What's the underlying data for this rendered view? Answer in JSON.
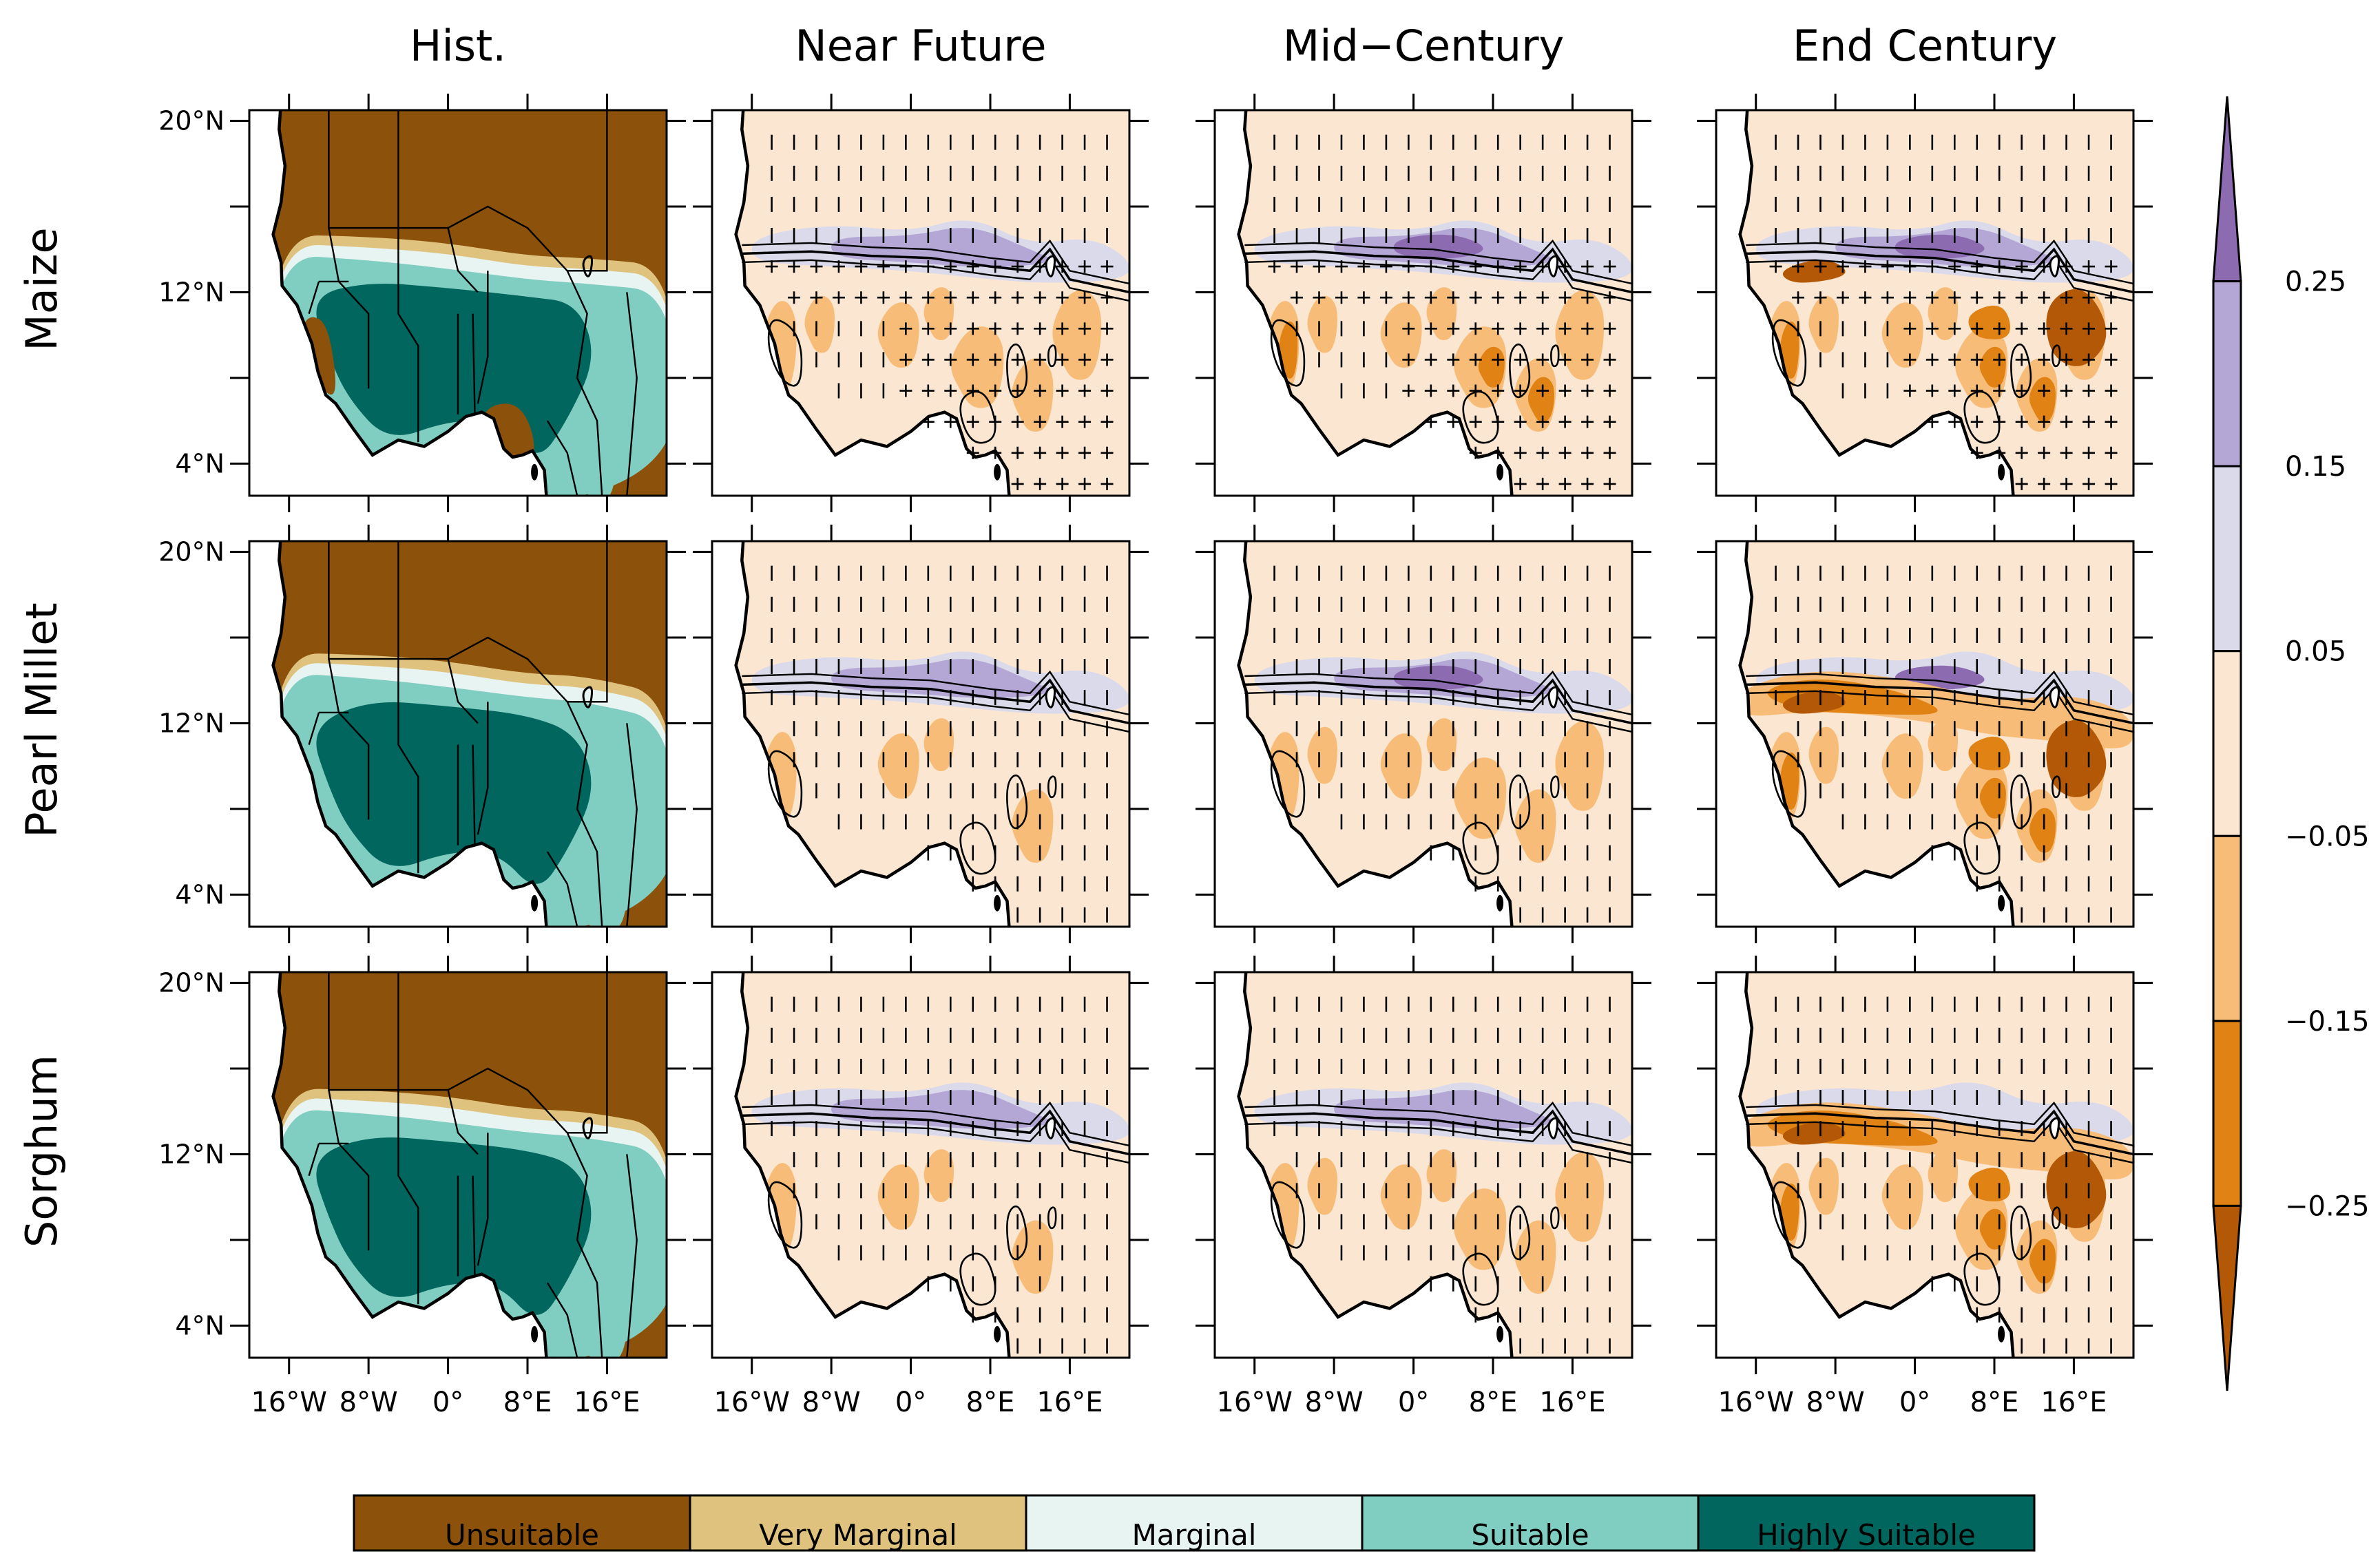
{
  "chart_data": {
    "type": "heatmap",
    "title": "",
    "column_titles": [
      "Hist.",
      "Near Future",
      "Mid−Century",
      "End Century"
    ],
    "row_labels": [
      "Maize",
      "Pearl Millet",
      "Sorghum"
    ],
    "x_ticks": [
      "16°W",
      "8°W",
      "0°",
      "8°E",
      "16°E"
    ],
    "x_tick_values": [
      -16,
      -8,
      0,
      8,
      16
    ],
    "y_ticks": [
      "20°N",
      "12°N",
      "4°N"
    ],
    "y_tick_values": [
      20,
      12,
      4
    ],
    "xlim": [
      -20,
      22
    ],
    "ylim": [
      2.5,
      20.5
    ],
    "historical_categories": {
      "labels": [
        "Unsuitable",
        "Very Marginal",
        "Marginal",
        "Suitable",
        "Highly Suitable"
      ],
      "colors": [
        "#8c510a",
        "#dfc27d",
        "#e8f4f2",
        "#80cdc1",
        "#01665e"
      ]
    },
    "change_colorbar": {
      "tick_labels": [
        "0.25",
        "0.15",
        "0.05",
        "−0.05",
        "−0.15",
        "−0.25"
      ],
      "tick_values": [
        0.25,
        0.15,
        0.05,
        -0.05,
        -0.15,
        -0.25
      ],
      "colors": [
        "#8c6bb1",
        "#b4a7d6",
        "#dadaeb",
        "#fbe6d2",
        "#f7bd78",
        "#e08214",
        "#b35806"
      ],
      "extend": "both"
    },
    "hatching": {
      "Near Future": [
        "|",
        "|",
        "|"
      ],
      "Mid−Century": [
        "|",
        "|",
        "|"
      ],
      "End Century": [
        "|",
        "|",
        "|"
      ],
      "cross_rows": [
        "Maize"
      ]
    }
  }
}
